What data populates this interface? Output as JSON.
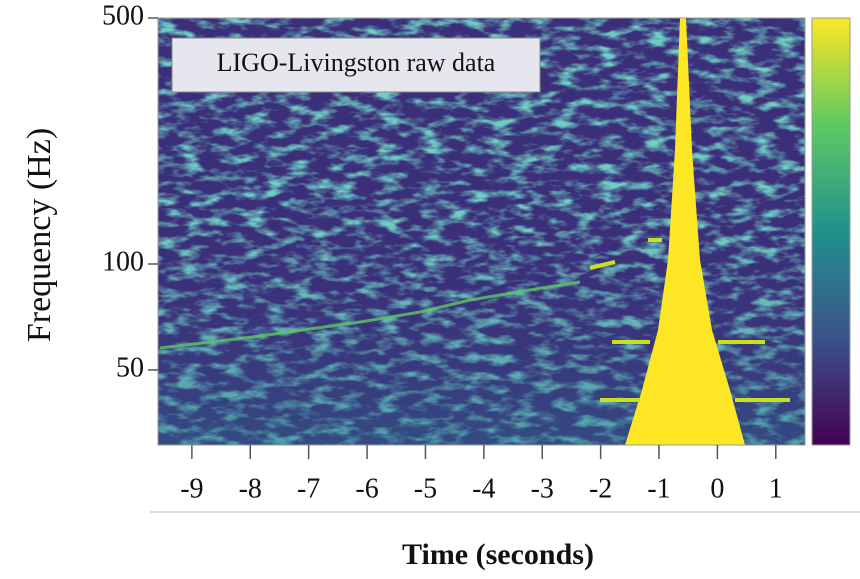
{
  "chart_data": {
    "type": "spectrogram",
    "annotation": "LIGO-Livingston raw data",
    "xlabel": "Time (seconds)",
    "ylabel": "Frequency (Hz)",
    "xlim": [
      -9.58,
      1.5
    ],
    "xticks": [
      -9,
      -8,
      -7,
      -6,
      -5,
      -4,
      -3,
      -2,
      -1,
      0,
      1
    ],
    "ylim": [
      30.6,
      500
    ],
    "yticks": [
      50,
      100,
      500
    ],
    "log_y": true
  }
}
